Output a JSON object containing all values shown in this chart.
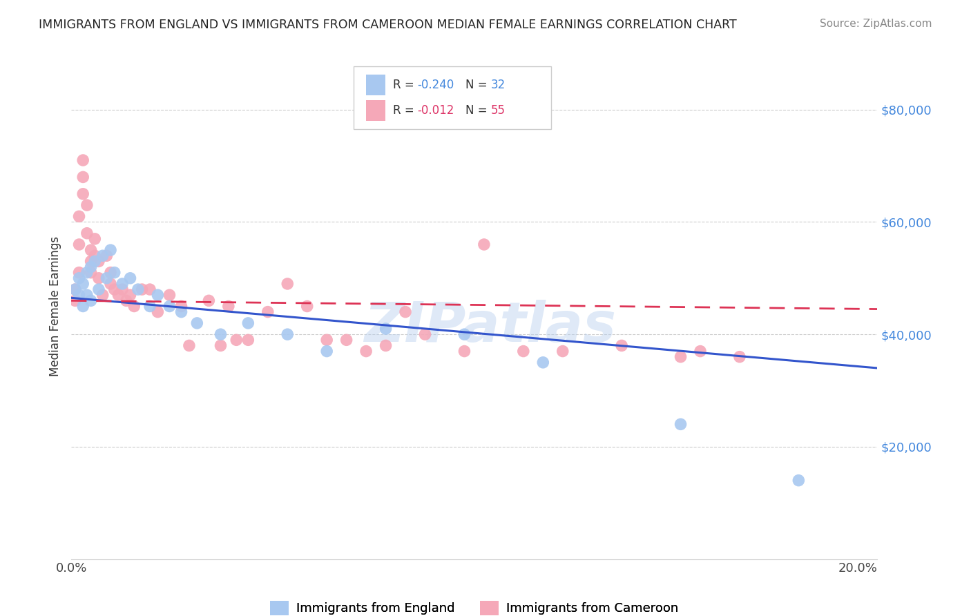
{
  "title": "IMMIGRANTS FROM ENGLAND VS IMMIGRANTS FROM CAMEROON MEDIAN FEMALE EARNINGS CORRELATION CHART",
  "source": "Source: ZipAtlas.com",
  "ylabel": "Median Female Earnings",
  "xlim": [
    0.0,
    0.205
  ],
  "ylim": [
    0,
    90000
  ],
  "yticks": [
    20000,
    40000,
    60000,
    80000
  ],
  "ytick_labels": [
    "$20,000",
    "$40,000",
    "$60,000",
    "$80,000"
  ],
  "xticks": [
    0.0,
    0.05,
    0.1,
    0.15,
    0.2
  ],
  "xtick_labels": [
    "0.0%",
    "",
    "",
    "",
    "20.0%"
  ],
  "background_color": "#ffffff",
  "watermark": "ZIPatlas",
  "blue_color": "#a8c8f0",
  "pink_color": "#f5a8b8",
  "line_blue": "#3355cc",
  "line_pink": "#dd3355",
  "label1": "Immigrants from England",
  "label2": "Immigrants from Cameroon",
  "england_x": [
    0.001,
    0.002,
    0.002,
    0.003,
    0.003,
    0.004,
    0.004,
    0.005,
    0.005,
    0.006,
    0.007,
    0.008,
    0.009,
    0.01,
    0.011,
    0.013,
    0.015,
    0.017,
    0.02,
    0.022,
    0.025,
    0.028,
    0.032,
    0.038,
    0.045,
    0.055,
    0.065,
    0.08,
    0.1,
    0.12,
    0.155,
    0.185
  ],
  "england_y": [
    48000,
    50000,
    47000,
    45000,
    49000,
    47000,
    51000,
    46000,
    52000,
    53000,
    48000,
    54000,
    50000,
    55000,
    51000,
    49000,
    50000,
    48000,
    45000,
    47000,
    45000,
    44000,
    42000,
    40000,
    42000,
    40000,
    37000,
    41000,
    40000,
    35000,
    24000,
    14000
  ],
  "cameroon_x": [
    0.001,
    0.001,
    0.002,
    0.002,
    0.002,
    0.003,
    0.003,
    0.003,
    0.004,
    0.004,
    0.005,
    0.005,
    0.005,
    0.006,
    0.006,
    0.007,
    0.007,
    0.008,
    0.009,
    0.01,
    0.01,
    0.011,
    0.012,
    0.013,
    0.014,
    0.015,
    0.016,
    0.018,
    0.02,
    0.022,
    0.025,
    0.028,
    0.03,
    0.035,
    0.038,
    0.04,
    0.042,
    0.045,
    0.05,
    0.055,
    0.06,
    0.065,
    0.07,
    0.075,
    0.08,
    0.085,
    0.09,
    0.1,
    0.105,
    0.115,
    0.125,
    0.14,
    0.155,
    0.16,
    0.17
  ],
  "cameroon_y": [
    48000,
    46000,
    51000,
    56000,
    61000,
    65000,
    68000,
    71000,
    58000,
    63000,
    53000,
    55000,
    51000,
    57000,
    54000,
    50000,
    53000,
    47000,
    54000,
    49000,
    51000,
    48000,
    47000,
    48000,
    46000,
    47000,
    45000,
    48000,
    48000,
    44000,
    47000,
    45000,
    38000,
    46000,
    38000,
    45000,
    39000,
    39000,
    44000,
    49000,
    45000,
    39000,
    39000,
    37000,
    38000,
    44000,
    40000,
    37000,
    56000,
    37000,
    37000,
    38000,
    36000,
    37000,
    36000
  ],
  "eng_line_x": [
    0.0,
    0.205
  ],
  "eng_line_y": [
    46500,
    34000
  ],
  "cam_line_x": [
    0.0,
    0.205
  ],
  "cam_line_y": [
    46000,
    44500
  ]
}
